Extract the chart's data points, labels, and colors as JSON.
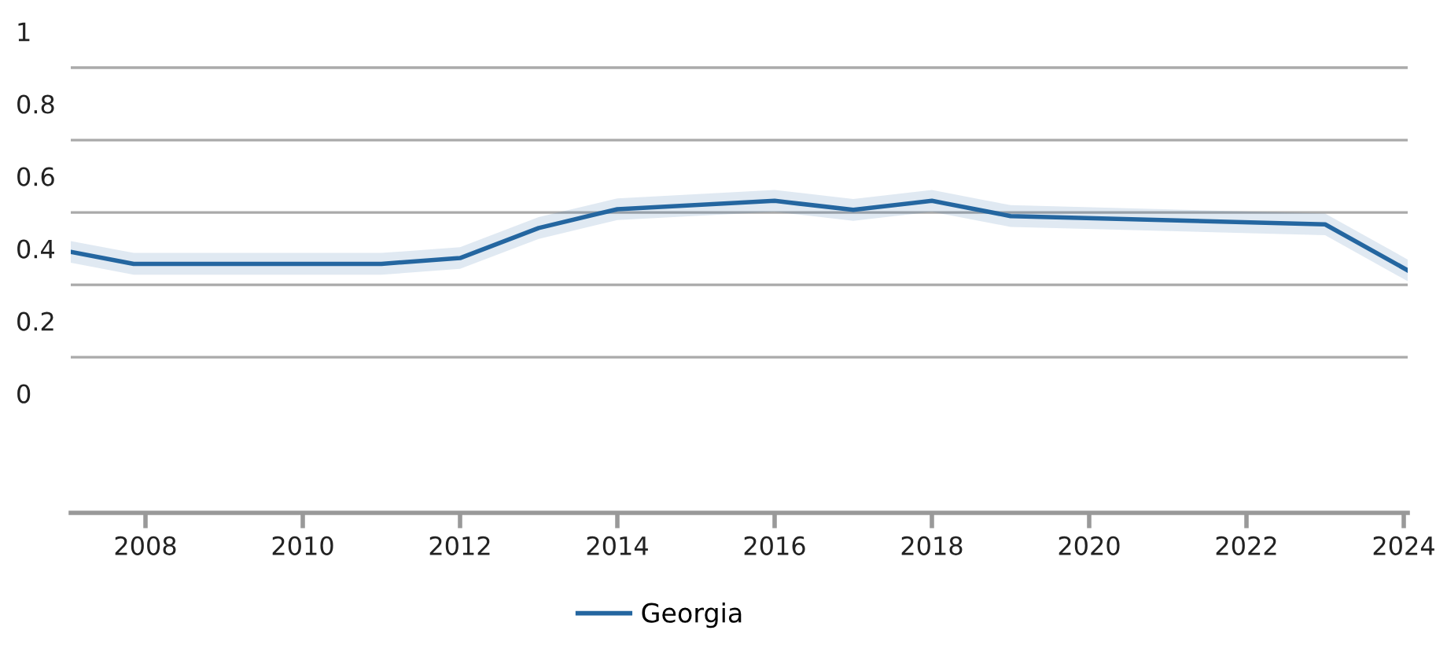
{
  "chart_data": {
    "type": "line",
    "x": [
      2007.05,
      2007.85,
      2011,
      2012,
      2013,
      2014,
      2016,
      2017,
      2018,
      2019,
      2023,
      2024.05
    ],
    "series": [
      {
        "name": "Georgia",
        "color": "#2466a0",
        "values": [
          0.391,
          0.358,
          0.358,
          0.374,
          0.457,
          0.509,
          0.532,
          0.507,
          0.532,
          0.49,
          0.467,
          0.34
        ],
        "lower": [
          0.361,
          0.328,
          0.328,
          0.344,
          0.427,
          0.479,
          0.502,
          0.477,
          0.502,
          0.46,
          0.437,
          0.31
        ],
        "upper": [
          0.421,
          0.388,
          0.388,
          0.404,
          0.487,
          0.539,
          0.562,
          0.537,
          0.562,
          0.52,
          0.497,
          0.37
        ]
      }
    ],
    "xlim": [
      2007.05,
      2024.05
    ],
    "xticks": [
      2008,
      2010,
      2012,
      2014,
      2016,
      2018,
      2020,
      2022,
      2024
    ],
    "ylim": [
      -0.33,
      1
    ],
    "yticks": [
      0,
      {
        "value": 0.1,
        "label": null
      },
      0.2,
      {
        "value": 0.3,
        "label": null
      },
      0.4,
      {
        "value": 0.5,
        "label": null
      },
      0.6,
      {
        "value": 0.7,
        "label": null
      },
      0.8,
      {
        "value": 0.9,
        "label": null
      },
      1
    ],
    "grid": "y",
    "legend": "bottom",
    "line_style": "solid",
    "marker": "none"
  }
}
